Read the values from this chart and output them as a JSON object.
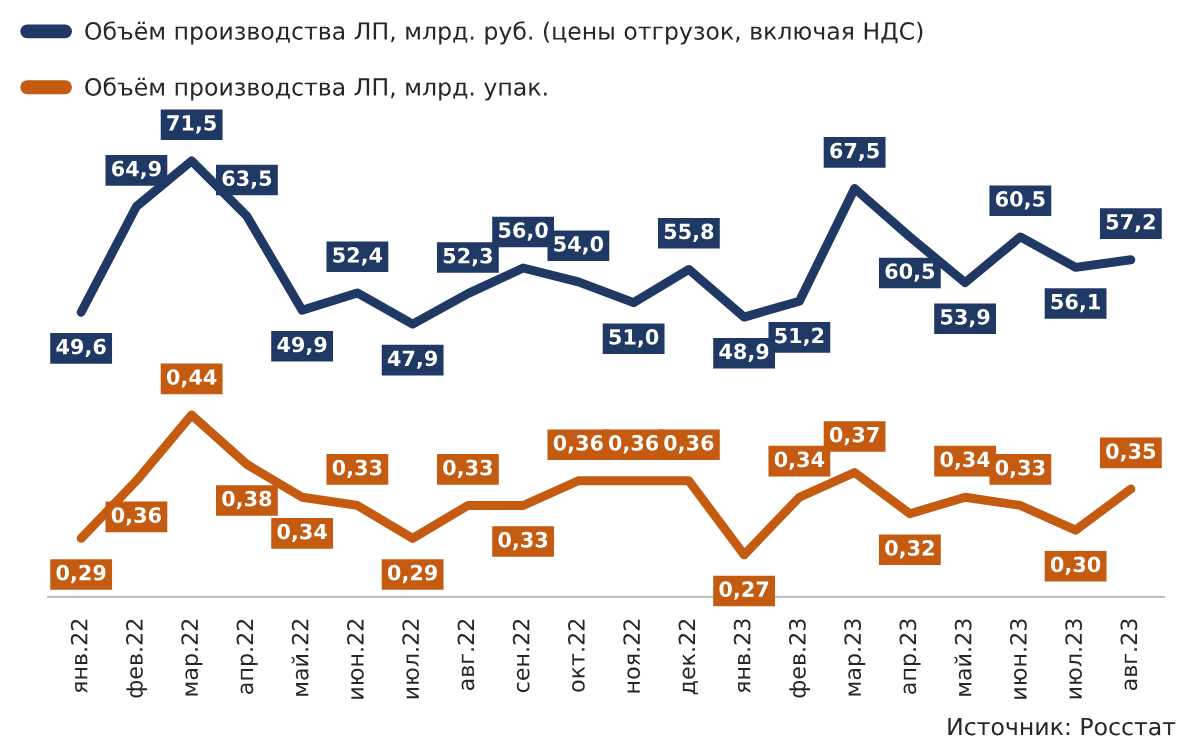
{
  "chart_data": [
    {
      "type": "line",
      "categories": [
        null,
        null,
        null,
        null,
        null,
        null,
        null,
        null,
        null,
        null,
        null,
        null,
        null,
        null,
        null,
        null,
        null,
        null,
        null,
        null
      ],
      "series": [
        {
          "name": "Объём производства ЛП, млрд. руб. (цены отгрузок, включая НДС)",
          "color": "#1f3864",
          "values": [
            49.6,
            64.9,
            71.5,
            63.5,
            49.9,
            52.4,
            47.9,
            52.3,
            56.0,
            54.0,
            51.0,
            55.8,
            48.9,
            51.2,
            67.5,
            60.5,
            53.9,
            60.5,
            56.1,
            57.2
          ],
          "value_labels": [
            "49,6",
            "64,9",
            "71,5",
            "63,5",
            "49,9",
            "52,4",
            "47,9",
            "52,3",
            "56,0",
            "54,0",
            "51,0",
            "55,8",
            "48,9",
            "51,2",
            "67,5",
            "60,5",
            "53,9",
            "60,5",
            "56,1",
            "57,2"
          ]
        }
      ],
      "tick_labels": false,
      "legend": "top left",
      "grid": false,
      "marker": "none",
      "line_style": "solid"
    },
    {
      "type": "line",
      "categories": [
        "янв.22",
        "фев.22",
        "мар.22",
        "апр.22",
        "май.22",
        "июн.22",
        "июл.22",
        "авг.22",
        "сен.22",
        "окт.22",
        "ноя.22",
        "дек.22",
        "янв.23",
        "фев.23",
        "мар.23",
        "апр.23",
        "май.23",
        "июн.23",
        "июл.23",
        "авг.23"
      ],
      "series": [
        {
          "name": "Объём производства ЛП, млрд. упак.",
          "color": "#c55a11",
          "values": [
            0.29,
            0.36,
            0.44,
            0.38,
            0.34,
            0.33,
            0.29,
            0.33,
            0.33,
            0.36,
            0.36,
            0.36,
            0.27,
            0.34,
            0.37,
            0.32,
            0.34,
            0.33,
            0.3,
            0.35
          ],
          "value_labels": [
            "0,29",
            "0,36",
            "0,44",
            "0,38",
            "0,34",
            "0,33",
            "0,29",
            "0,33",
            "0,33",
            "0,36",
            "0,36",
            "0,36",
            "0,27",
            "0,34",
            "0,37",
            "0,32",
            "0,34",
            "0,33",
            "0,30",
            "0,35"
          ]
        }
      ],
      "tick_labels": "x",
      "legend": "top left",
      "grid": false,
      "marker": "none",
      "line_style": "solid",
      "annotations": [
        "Источник: Росстат"
      ]
    }
  ]
}
